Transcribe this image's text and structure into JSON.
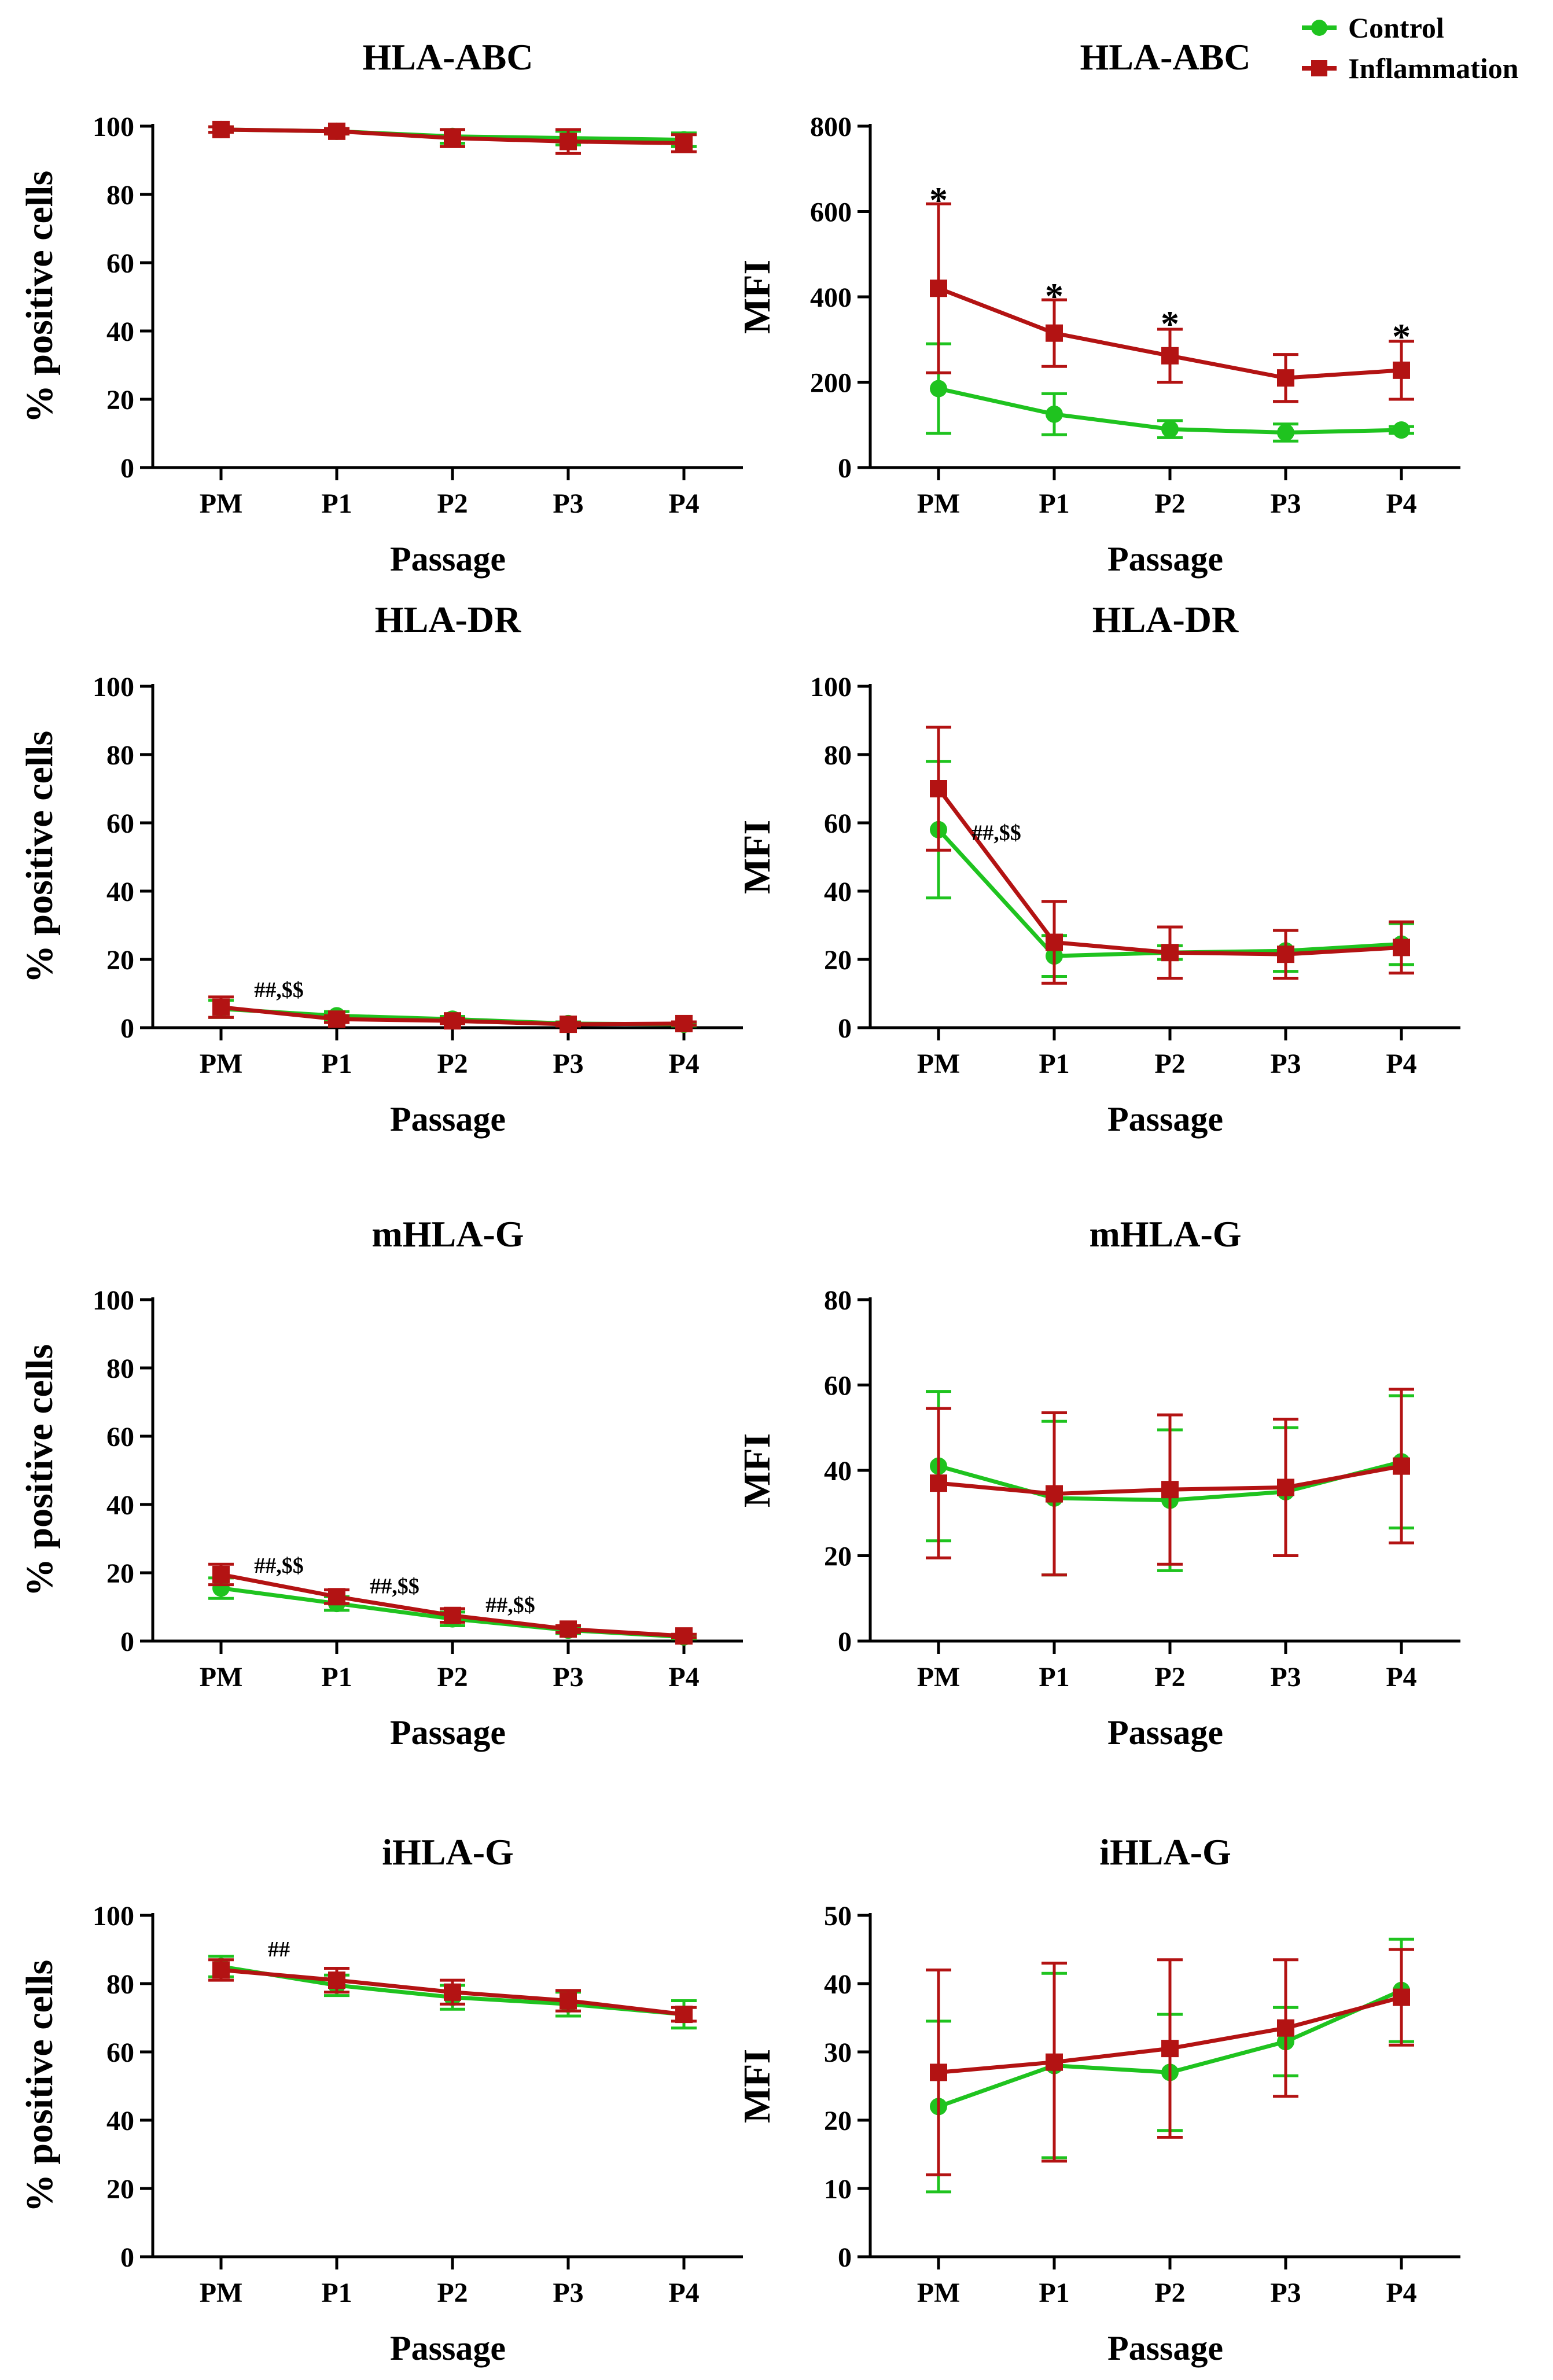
{
  "legend": {
    "entries": [
      {
        "name": "Control",
        "color": "#1fc31f",
        "marker": "circle"
      },
      {
        "name": "Inflammation",
        "color": "#b31313",
        "marker": "square"
      }
    ]
  },
  "chart_data": [
    {
      "id": "hla-abc-percent",
      "type": "line",
      "title": "HLA-ABC",
      "xlabel": "Passage",
      "ylabel": "% positive cells",
      "categories": [
        "PM",
        "P1",
        "P2",
        "P3",
        "P4"
      ],
      "ylim": [
        0,
        100
      ],
      "yticks": [
        0,
        20,
        40,
        60,
        80,
        100
      ],
      "series": [
        {
          "name": "Control",
          "values": [
            99,
            98.5,
            97,
            96.5,
            96
          ],
          "errors": [
            0.8,
            0.8,
            2,
            2,
            2
          ]
        },
        {
          "name": "Inflammation",
          "values": [
            99,
            98.5,
            96.5,
            95.5,
            95
          ],
          "errors": [
            0.8,
            0.8,
            2.5,
            3.5,
            2.5
          ]
        }
      ],
      "annotations": []
    },
    {
      "id": "hla-abc-mfi",
      "type": "line",
      "title": "HLA-ABC",
      "xlabel": "Passage",
      "ylabel": "MFI",
      "categories": [
        "PM",
        "P1",
        "P2",
        "P3",
        "P4"
      ],
      "ylim": [
        0,
        800
      ],
      "yticks": [
        0,
        200,
        400,
        600,
        800
      ],
      "series": [
        {
          "name": "Control",
          "values": [
            185,
            125,
            90,
            82,
            88
          ],
          "errors": [
            105,
            48,
            20,
            20,
            8
          ]
        },
        {
          "name": "Inflammation",
          "values": [
            420,
            315,
            262,
            210,
            228
          ],
          "errors": [
            198,
            78,
            62,
            55,
            68
          ]
        }
      ],
      "annotations": [
        {
          "text": "*",
          "x": "PM",
          "y": 625
        },
        {
          "text": "*",
          "x": "P1",
          "y": 400
        },
        {
          "text": "*",
          "x": "P2",
          "y": 335
        },
        {
          "text": "*",
          "x": "P4",
          "y": 305
        }
      ]
    },
    {
      "id": "hla-dr-percent",
      "type": "line",
      "title": "HLA-DR",
      "xlabel": "Passage",
      "ylabel": "% positive cells",
      "categories": [
        "PM",
        "P1",
        "P2",
        "P3",
        "P4"
      ],
      "ylim": [
        0,
        100
      ],
      "yticks": [
        0,
        20,
        40,
        60,
        80,
        100
      ],
      "series": [
        {
          "name": "Control",
          "values": [
            5.5,
            3.5,
            2.5,
            1.2,
            1
          ],
          "errors": [
            2.5,
            1.2,
            0.8,
            0.5,
            0.5
          ]
        },
        {
          "name": "Inflammation",
          "values": [
            6,
            2.5,
            2,
            1,
            1.2
          ],
          "errors": [
            3,
            1,
            0.8,
            0.5,
            0.5
          ]
        }
      ],
      "annotations": [
        {
          "text": "##,$$",
          "x_between": [
            "PM",
            "P1"
          ],
          "y": 9
        }
      ]
    },
    {
      "id": "hla-dr-mfi",
      "type": "line",
      "title": "HLA-DR",
      "xlabel": "Passage",
      "ylabel": "MFI",
      "categories": [
        "PM",
        "P1",
        "P2",
        "P3",
        "P4"
      ],
      "ylim": [
        0,
        100
      ],
      "yticks": [
        0,
        20,
        40,
        60,
        80,
        100
      ],
      "series": [
        {
          "name": "Control",
          "values": [
            58,
            21,
            22,
            22.5,
            24.5
          ],
          "errors": [
            20,
            6,
            2,
            6,
            6
          ]
        },
        {
          "name": "Inflammation",
          "values": [
            70,
            25,
            22,
            21.5,
            23.5
          ],
          "errors": [
            18,
            12,
            7.5,
            7,
            7.5
          ]
        }
      ],
      "annotations": [
        {
          "text": "##,$$",
          "x_between": [
            "PM",
            "P1"
          ],
          "y": 55
        }
      ]
    },
    {
      "id": "mhla-g-percent",
      "type": "line",
      "title": "mHLA-G",
      "xlabel": "Passage",
      "ylabel": "% positive cells",
      "categories": [
        "PM",
        "P1",
        "P2",
        "P3",
        "P4"
      ],
      "ylim": [
        0,
        100
      ],
      "yticks": [
        0,
        20,
        40,
        60,
        80,
        100
      ],
      "series": [
        {
          "name": "Control",
          "values": [
            15.5,
            11,
            6.5,
            3.2,
            1.2
          ],
          "errors": [
            3,
            2,
            2,
            1,
            0.5
          ]
        },
        {
          "name": "Inflammation",
          "values": [
            19.5,
            13,
            7.5,
            3.5,
            1.5
          ],
          "errors": [
            3,
            2,
            2,
            1,
            0.5
          ]
        }
      ],
      "annotations": [
        {
          "text": "##,$$",
          "x_between": [
            "PM",
            "P1"
          ],
          "y": 20
        },
        {
          "text": "##,$$",
          "x_between": [
            "P1",
            "P2"
          ],
          "y": 14
        },
        {
          "text": "##,$$",
          "x_between": [
            "P2",
            "P3"
          ],
          "y": 8.5
        }
      ]
    },
    {
      "id": "mhla-g-mfi",
      "type": "line",
      "title": "mHLA-G",
      "xlabel": "Passage",
      "ylabel": "MFI",
      "categories": [
        "PM",
        "P1",
        "P2",
        "P3",
        "P4"
      ],
      "ylim": [
        0,
        80
      ],
      "yticks": [
        0,
        20,
        40,
        60,
        80
      ],
      "series": [
        {
          "name": "Control",
          "values": [
            41,
            33.5,
            33,
            35,
            42
          ],
          "errors": [
            17.5,
            18,
            16.5,
            15,
            15.5
          ]
        },
        {
          "name": "Inflammation",
          "values": [
            37,
            34.5,
            35.5,
            36,
            41
          ],
          "errors": [
            17.5,
            19,
            17.5,
            16,
            18
          ]
        }
      ],
      "annotations": []
    },
    {
      "id": "ihla-g-percent",
      "type": "line",
      "title": "iHLA-G",
      "xlabel": "Passage",
      "ylabel": "% positive cells",
      "categories": [
        "PM",
        "P1",
        "P2",
        "P3",
        "P4"
      ],
      "ylim": [
        0,
        100
      ],
      "yticks": [
        0,
        20,
        40,
        60,
        80,
        100
      ],
      "series": [
        {
          "name": "Control",
          "values": [
            85,
            79.5,
            76,
            74,
            71
          ],
          "errors": [
            3,
            3,
            3.5,
            3.5,
            4
          ]
        },
        {
          "name": "Inflammation",
          "values": [
            84,
            81,
            77.5,
            75,
            71
          ],
          "errors": [
            3,
            3.5,
            3.5,
            3,
            2
          ]
        }
      ],
      "annotations": [
        {
          "text": "##",
          "x_between": [
            "PM",
            "P1"
          ],
          "y": 88
        }
      ]
    },
    {
      "id": "ihla-g-mfi",
      "type": "line",
      "title": "iHLA-G",
      "xlabel": "Passage",
      "ylabel": "MFI",
      "categories": [
        "PM",
        "P1",
        "P2",
        "P3",
        "P4"
      ],
      "ylim": [
        0,
        50
      ],
      "yticks": [
        0,
        10,
        20,
        30,
        40,
        50
      ],
      "series": [
        {
          "name": "Control",
          "values": [
            22,
            28,
            27,
            31.5,
            39
          ],
          "errors": [
            12.5,
            13.5,
            8.5,
            5,
            7.5
          ]
        },
        {
          "name": "Inflammation",
          "values": [
            27,
            28.5,
            30.5,
            33.5,
            38
          ],
          "errors": [
            15,
            14.5,
            13,
            10,
            7
          ]
        }
      ],
      "annotations": []
    }
  ]
}
